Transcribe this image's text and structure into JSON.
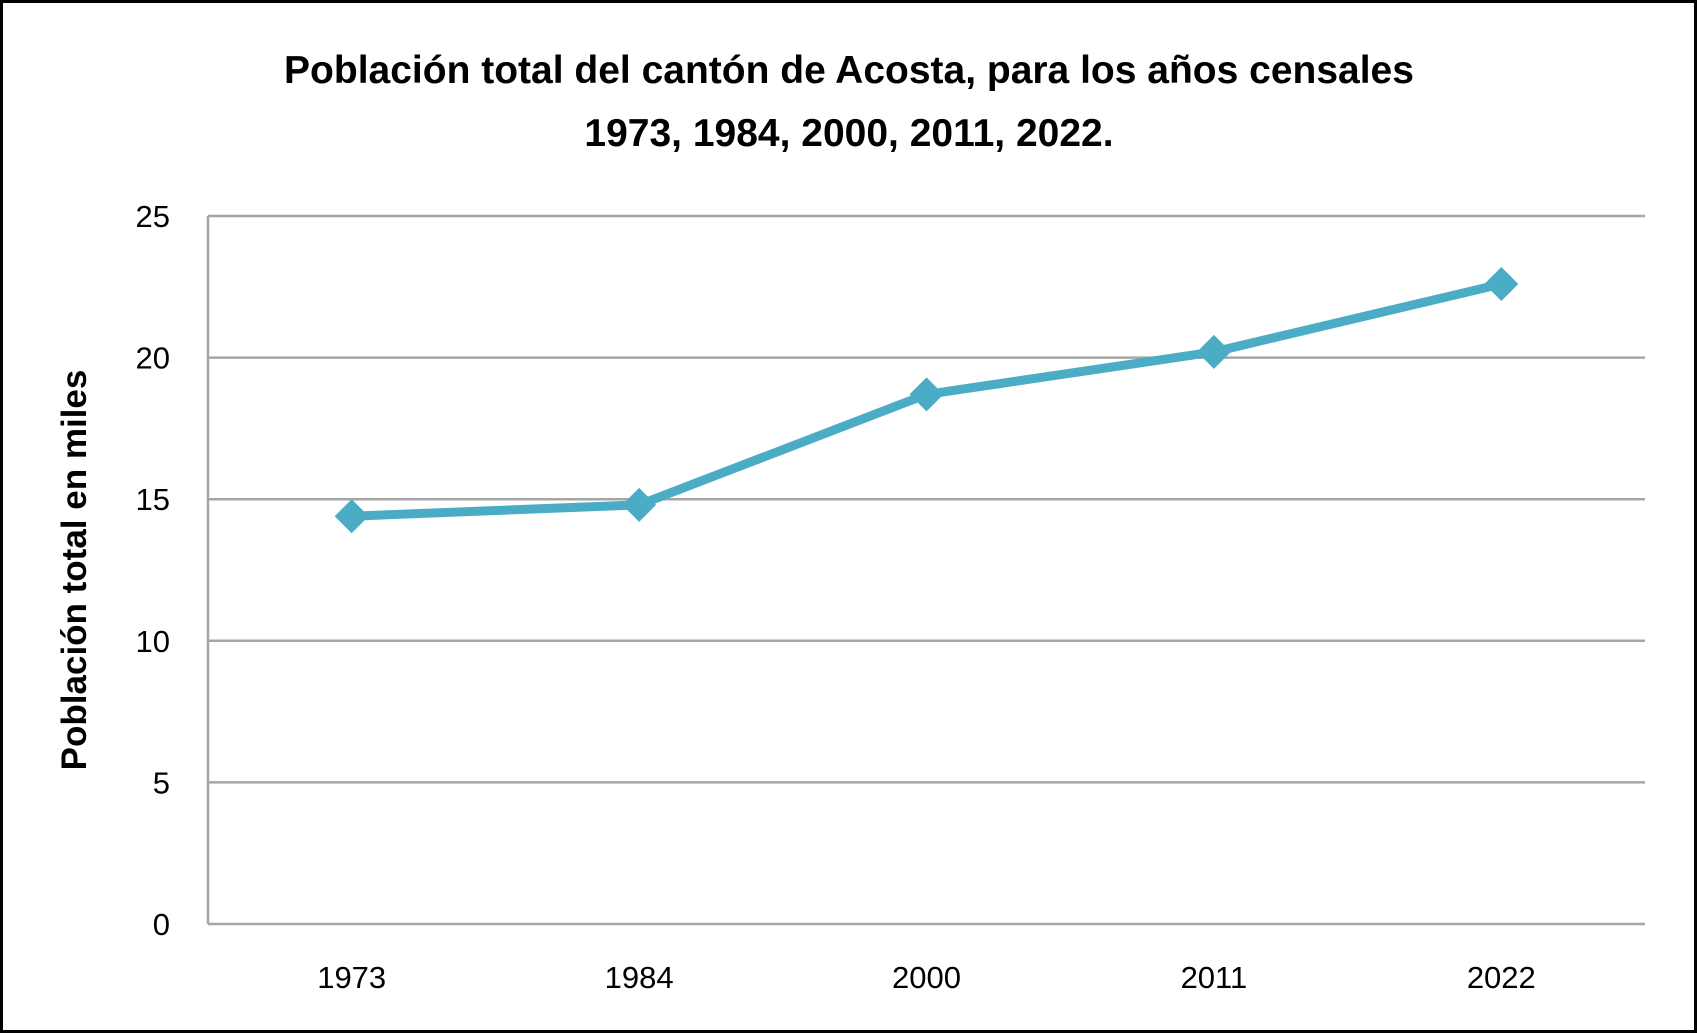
{
  "chart_data": {
    "type": "line",
    "title_lines": [
      "Población total del cantón de Acosta, para los años censales",
      "1973, 1984, 2000, 2011, 2022."
    ],
    "xlabel": "",
    "ylabel": "Población total en miles",
    "categories": [
      "1973",
      "1984",
      "2000",
      "2011",
      "2022"
    ],
    "series": [
      {
        "name": "Población total",
        "values": [
          14.4,
          14.8,
          18.7,
          20.2,
          22.6
        ],
        "color": "#4BACC6",
        "marker": "diamond"
      }
    ],
    "ylim": [
      0,
      25
    ],
    "yticks": [
      "0",
      "5",
      "10",
      "15",
      "20",
      "25"
    ],
    "grid": true,
    "legend": "none"
  }
}
